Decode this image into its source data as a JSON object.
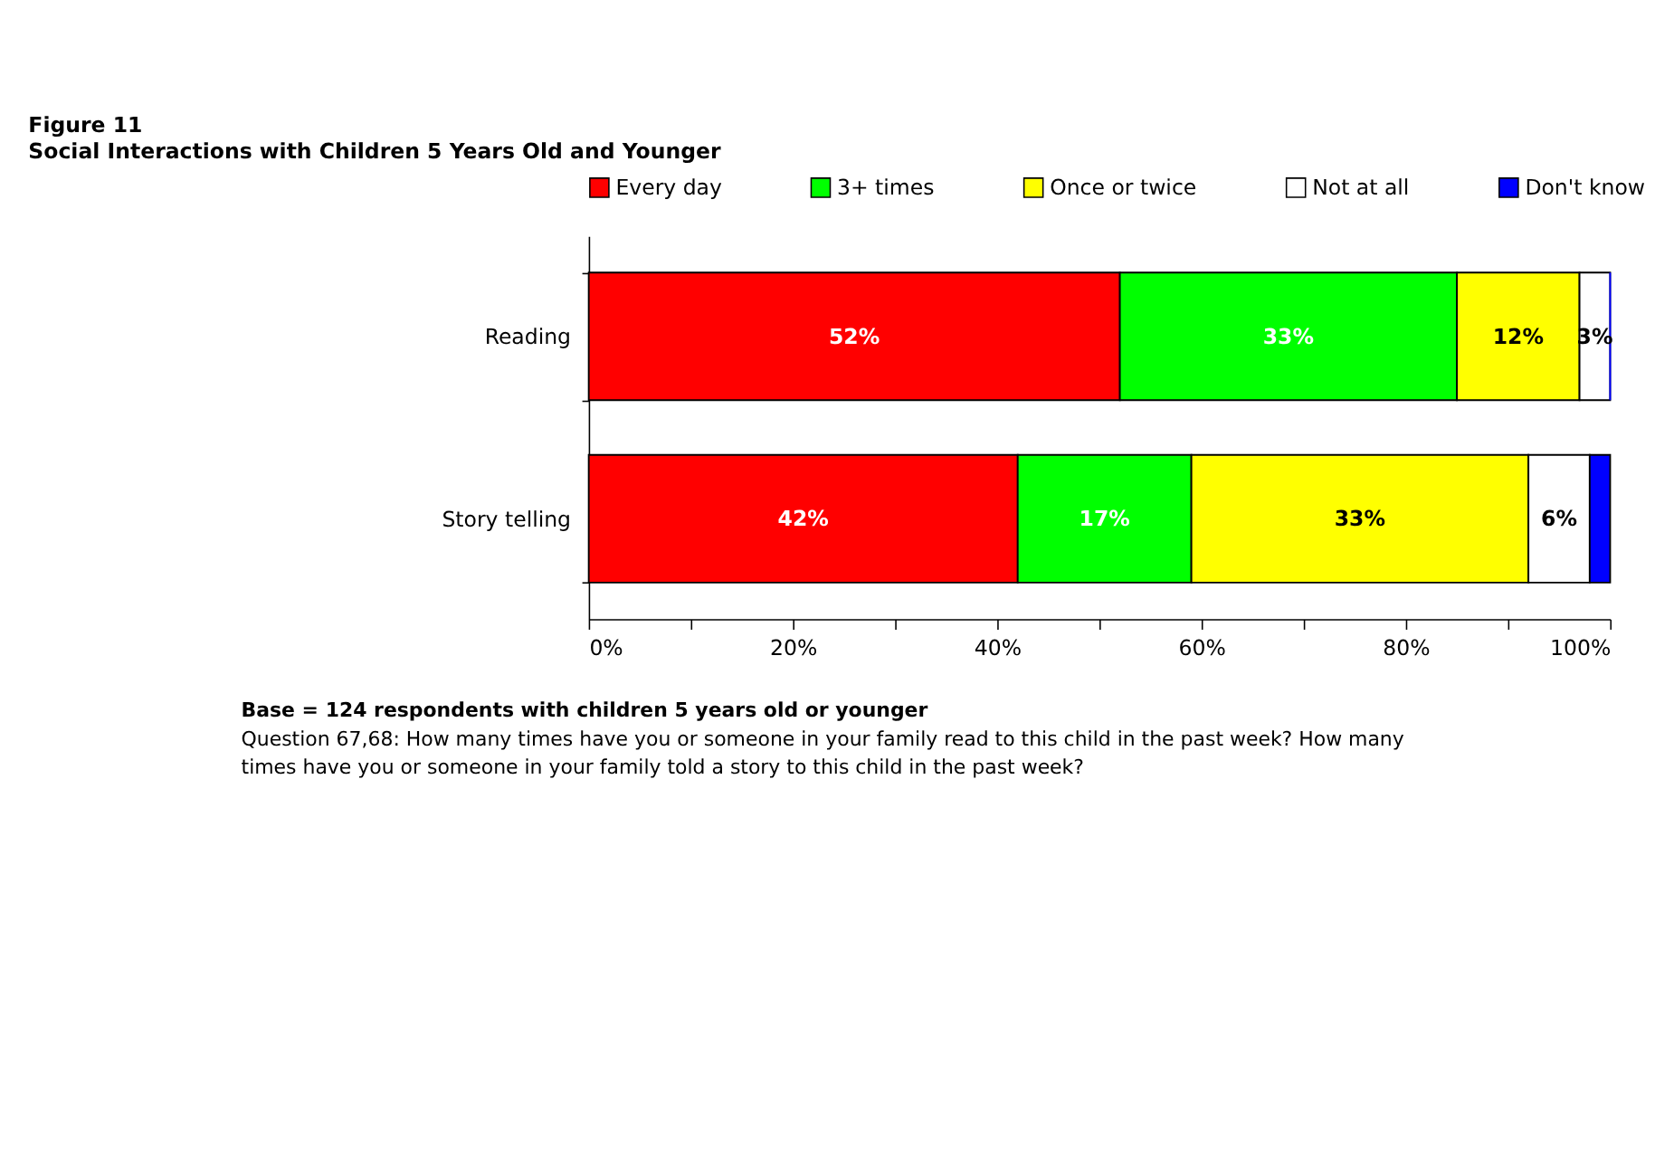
{
  "chart_data": {
    "type": "bar",
    "orientation": "horizontal",
    "stacked": true,
    "title": "Figure 11",
    "subtitle": "Social Interactions with Children 5 Years Old and Younger",
    "categories": [
      "Reading",
      "Story telling"
    ],
    "series": [
      {
        "name": "Every day",
        "color": "#ff0000",
        "values": [
          52,
          42
        ],
        "value_labels": [
          "52%",
          "42%"
        ]
      },
      {
        "name": "3+ times",
        "color": "#00ff00",
        "values": [
          33,
          17
        ],
        "value_labels": [
          "33%",
          "17%"
        ]
      },
      {
        "name": "Once or twice",
        "color": "#ffff00",
        "values": [
          12,
          33
        ],
        "value_labels": [
          "12%",
          "33%"
        ]
      },
      {
        "name": "Not at all",
        "color": "#ffffff",
        "values": [
          3,
          6
        ],
        "value_labels": [
          "3%",
          "6%"
        ]
      },
      {
        "name": "Don't know",
        "color": "#0000ff",
        "values": [
          0,
          2
        ],
        "value_labels": [
          null,
          null
        ]
      }
    ],
    "xlim": [
      0,
      100
    ],
    "xticks": [
      {
        "value": 0,
        "label": "0%"
      },
      {
        "value": 10,
        "label": null
      },
      {
        "value": 20,
        "label": "20%"
      },
      {
        "value": 30,
        "label": null
      },
      {
        "value": 40,
        "label": "40%"
      },
      {
        "value": 50,
        "label": null
      },
      {
        "value": 60,
        "label": "60%"
      },
      {
        "value": 70,
        "label": null
      },
      {
        "value": 80,
        "label": "80%"
      },
      {
        "value": 90,
        "label": null
      },
      {
        "value": 100,
        "label": "100%"
      }
    ],
    "legend": "top",
    "grid": false,
    "annotations": [
      "Base = 124 respondents with children 5 years old or younger",
      "Question 67,68: How many times have you or someone in your family read to this child in the past week? How many times have you or someone in your family told a story to this child in the past week?"
    ]
  }
}
